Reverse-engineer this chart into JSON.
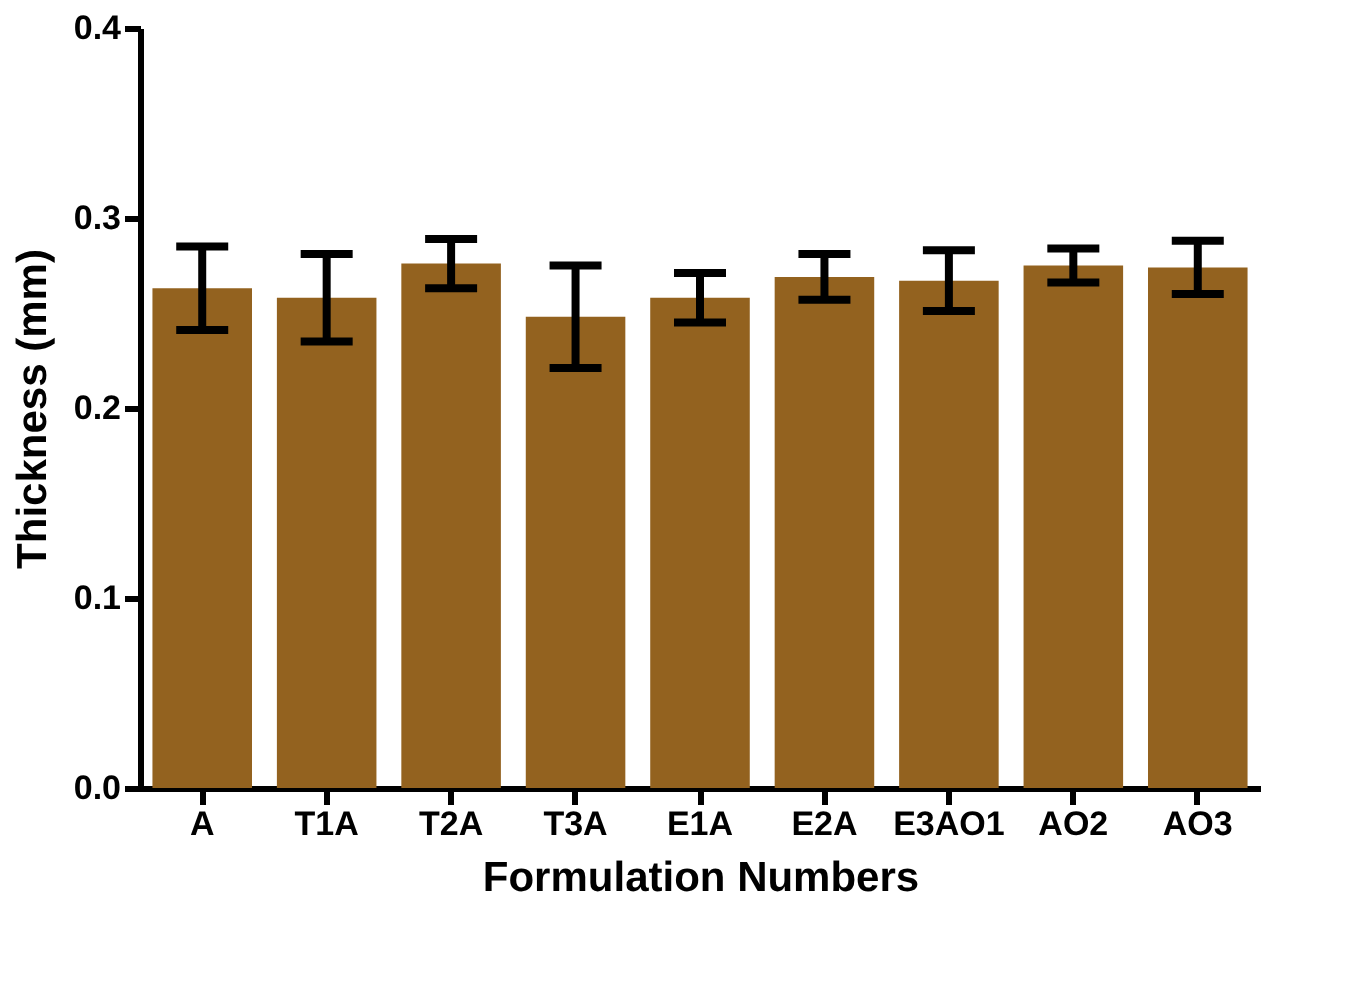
{
  "chart_data": {
    "type": "bar",
    "xlabel": "Formulation Numbers",
    "ylabel": "Thickness (mm)",
    "categories": [
      "A",
      "T1A",
      "T2A",
      "T3A",
      "E1A",
      "E2A",
      "E3AO1",
      "AO2",
      "AO3"
    ],
    "values": [
      0.263,
      0.258,
      0.276,
      0.248,
      0.258,
      0.269,
      0.267,
      0.275,
      0.274
    ],
    "errors": [
      0.022,
      0.023,
      0.013,
      0.027,
      0.013,
      0.012,
      0.016,
      0.009,
      0.014
    ],
    "color": "#93621f",
    "ylim": [
      0,
      0.4
    ],
    "yticks": [
      {
        "value": 0,
        "label": "0.0"
      },
      {
        "value": 0.1,
        "label": "0.1"
      },
      {
        "value": 0.2,
        "label": "0.2"
      },
      {
        "value": 0.3,
        "label": "0.3"
      },
      {
        "value": 0.4,
        "label": "0.4"
      }
    ],
    "grid": false
  }
}
